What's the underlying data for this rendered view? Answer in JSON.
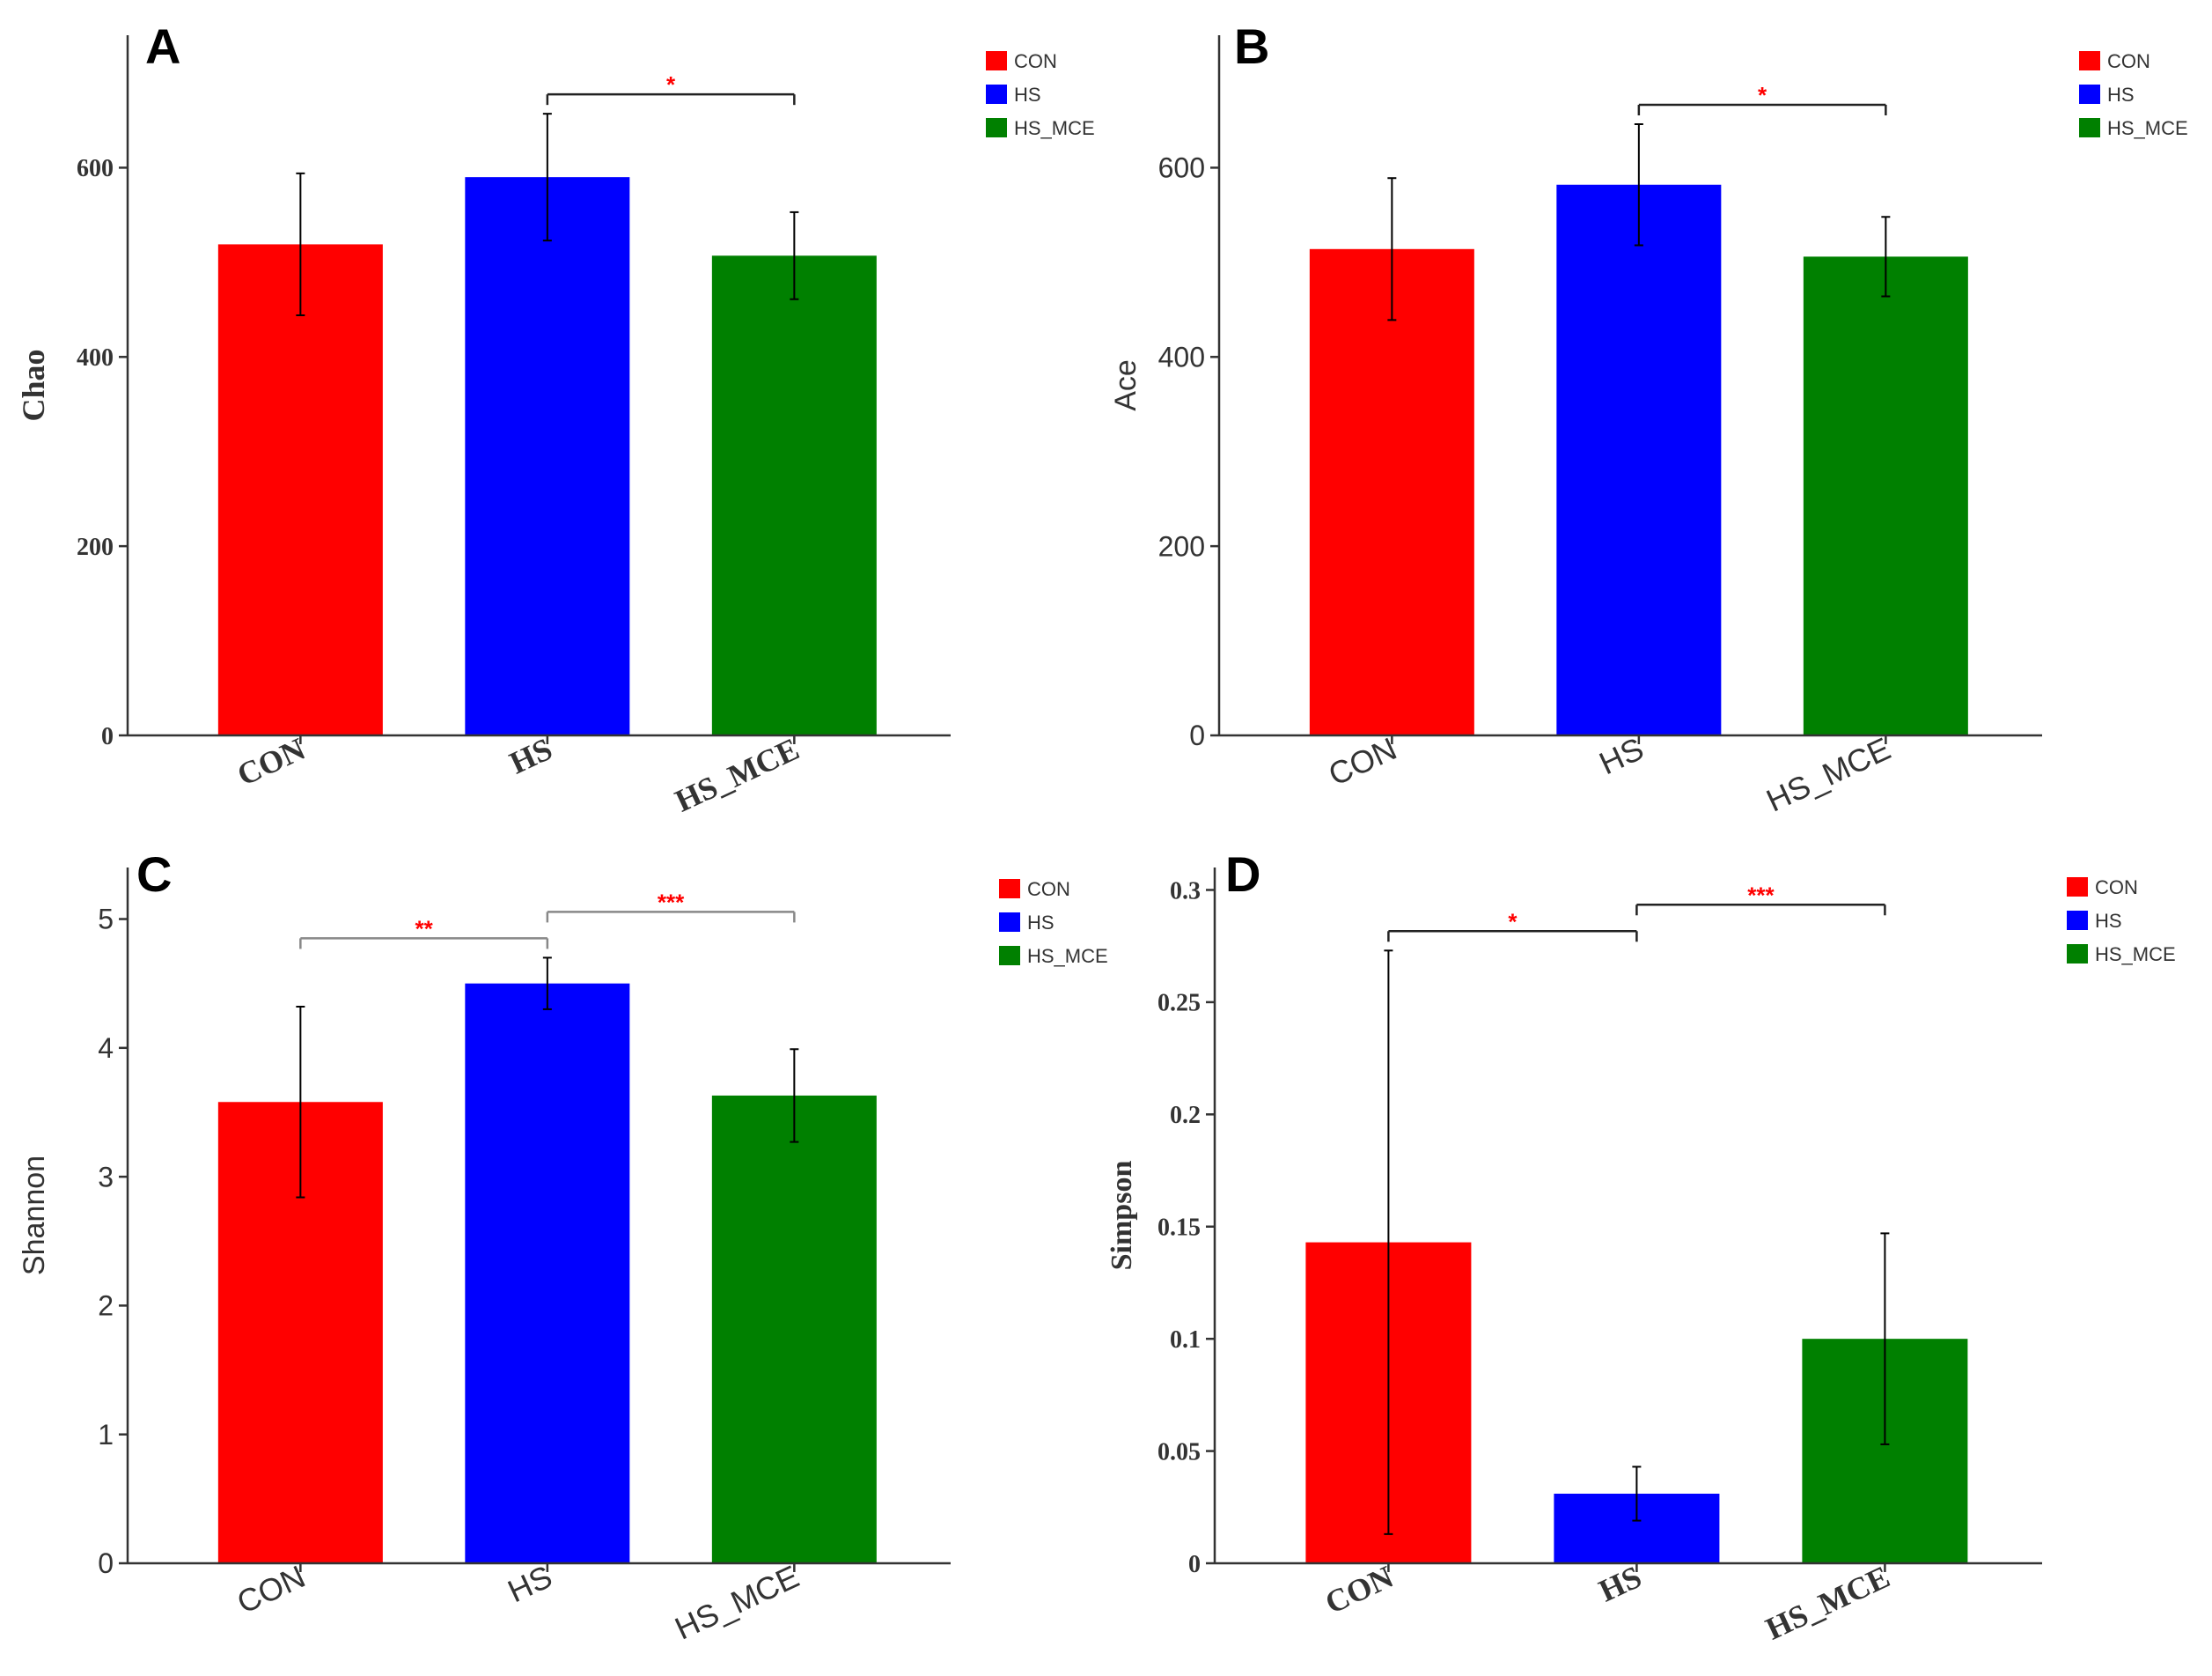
{
  "chart_data": [
    {
      "type": "bar",
      "panel_label": "A",
      "ylabel": "Chao",
      "categories": [
        "CON",
        "HS",
        "HS_MCE"
      ],
      "values": [
        519,
        590,
        507
      ],
      "errors": [
        75,
        67,
        46
      ],
      "ylim": [
        0,
        740
      ],
      "yticks": [
        0,
        200,
        400,
        600
      ],
      "ytick_labels": [
        "0",
        "200",
        "400",
        "600"
      ],
      "colors": [
        "#ff0000",
        "#0000ff",
        "#008000"
      ],
      "legend": [
        "CON",
        "HS",
        "HS_MCE"
      ],
      "legend_position": "top-right",
      "significance": [
        {
          "from": 1,
          "to": 2,
          "label": "*"
        }
      ]
    },
    {
      "type": "bar",
      "panel_label": "B",
      "ylabel": "Ace",
      "categories": [
        "CON",
        "HS",
        "HS_MCE"
      ],
      "values": [
        514,
        582,
        506
      ],
      "errors": [
        75,
        64,
        42
      ],
      "ylim": [
        0,
        740
      ],
      "yticks": [
        0,
        200,
        400,
        600
      ],
      "ytick_labels": [
        "0",
        "200",
        "400",
        "600"
      ],
      "colors": [
        "#ff0000",
        "#0000ff",
        "#008000"
      ],
      "legend": [
        "CON",
        "HS",
        "HS_MCE"
      ],
      "legend_position": "top-right",
      "significance": [
        {
          "from": 1,
          "to": 2,
          "label": "*"
        }
      ]
    },
    {
      "type": "bar",
      "panel_label": "C",
      "ylabel": "Shannon",
      "categories": [
        "CON",
        "HS",
        "HS_MCE"
      ],
      "values": [
        3.58,
        4.5,
        3.63
      ],
      "errors": [
        0.74,
        0.2,
        0.36
      ],
      "ylim": [
        0,
        5.4
      ],
      "yticks": [
        0,
        1,
        2,
        3,
        4,
        5
      ],
      "ytick_labels": [
        "0",
        "1",
        "2",
        "3",
        "4",
        "5"
      ],
      "colors": [
        "#ff0000",
        "#0000ff",
        "#008000"
      ],
      "legend": [
        "CON",
        "HS",
        "HS_MCE"
      ],
      "legend_position": "top-right",
      "significance": [
        {
          "from": 0,
          "to": 1,
          "label": "**"
        },
        {
          "from": 1,
          "to": 2,
          "label": "***"
        }
      ]
    },
    {
      "type": "bar",
      "panel_label": "D",
      "ylabel": "Simpson",
      "categories": [
        "CON",
        "HS",
        "HS_MCE"
      ],
      "values": [
        0.143,
        0.031,
        0.1
      ],
      "errors": [
        0.13,
        0.012,
        0.047
      ],
      "ylim": [
        0,
        0.31
      ],
      "yticks": [
        0,
        0.05,
        0.1,
        0.15,
        0.2,
        0.25,
        0.3
      ],
      "ytick_labels": [
        "0",
        "0.05",
        "0.1",
        "0.15",
        "0.2",
        "0.25",
        "0.3"
      ],
      "colors": [
        "#ff0000",
        "#0000ff",
        "#008000"
      ],
      "legend": [
        "CON",
        "HS",
        "HS_MCE"
      ],
      "legend_position": "top-right",
      "significance": [
        {
          "from": 0,
          "to": 1,
          "label": "*"
        },
        {
          "from": 1,
          "to": 2,
          "label": "***"
        }
      ]
    }
  ]
}
